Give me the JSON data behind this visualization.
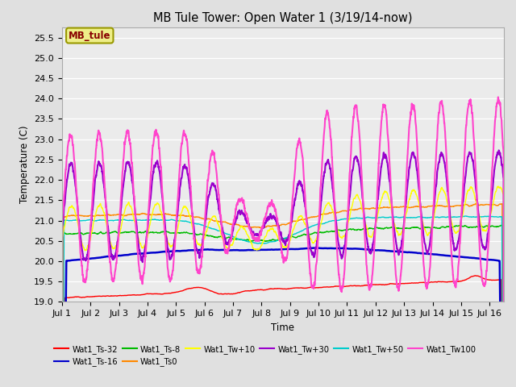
{
  "title": "MB Tule Tower: Open Water 1 (3/19/14-now)",
  "xlabel": "Time",
  "ylabel": "Temperature (C)",
  "ylim": [
    19.0,
    25.75
  ],
  "yticks": [
    19.0,
    19.5,
    20.0,
    20.5,
    21.0,
    21.5,
    22.0,
    22.5,
    23.0,
    23.5,
    24.0,
    24.5,
    25.0,
    25.5
  ],
  "xlim": [
    0,
    15.5
  ],
  "xtick_labels": [
    "Jul 1",
    "Jul 2",
    "Jul 3",
    "Jul 4",
    "Jul 5",
    "Jul 6",
    "Jul 7",
    "Jul 8",
    "Jul 9",
    "Jul 10",
    "Jul 11",
    "Jul 12",
    "Jul 13",
    "Jul 14",
    "Jul 15",
    "Jul 16"
  ],
  "xtick_positions": [
    0,
    1,
    2,
    3,
    4,
    5,
    6,
    7,
    8,
    9,
    10,
    11,
    12,
    13,
    14,
    15
  ],
  "series": {
    "Wat1_Ts-32": {
      "color": "#ff0000",
      "lw": 1.0
    },
    "Wat1_Ts-16": {
      "color": "#0000cc",
      "lw": 1.8
    },
    "Wat1_Ts-8": {
      "color": "#00bb00",
      "lw": 1.0
    },
    "Wat1_Ts0": {
      "color": "#ff8800",
      "lw": 1.0
    },
    "Wat1_Tw+10": {
      "color": "#ffff00",
      "lw": 1.0
    },
    "Wat1_Tw+30": {
      "color": "#9900cc",
      "lw": 1.5
    },
    "Wat1_Tw+50": {
      "color": "#00cccc",
      "lw": 1.0
    },
    "Wat1_Tw100": {
      "color": "#ff44cc",
      "lw": 1.5
    }
  },
  "legend_box_text": "MB_tule",
  "background_color": "#e0e0e0",
  "plot_bg_color": "#ebebeb"
}
